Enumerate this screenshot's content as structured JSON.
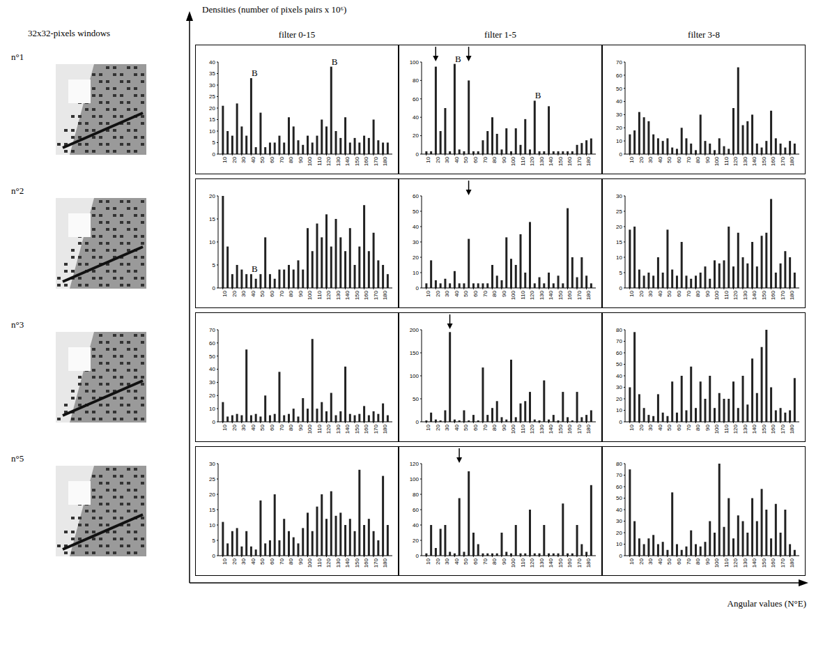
{
  "figure": {
    "y_label": "Densities (number of pixels pairs x 10⁶)",
    "x_label": "Angular values (N°E)",
    "image_header": "32x32-pixels windows",
    "rows": [
      "n°1",
      "n°2",
      "n°3",
      "n°5"
    ]
  },
  "chart_data": [
    {
      "type": "bar",
      "title": "filter 0-15",
      "color": "#222222",
      "xlim": [
        5,
        190
      ],
      "xticks": [
        10,
        20,
        30,
        40,
        50,
        60,
        70,
        80,
        90,
        100,
        110,
        120,
        130,
        140,
        150,
        160,
        170,
        180
      ],
      "ylim": [
        0,
        40
      ],
      "yticks": [
        0,
        5,
        10,
        15,
        20,
        25,
        30,
        35,
        40
      ],
      "x": [
        10,
        15,
        20,
        25,
        30,
        35,
        40,
        45,
        50,
        55,
        60,
        65,
        70,
        75,
        80,
        85,
        90,
        95,
        100,
        105,
        110,
        115,
        120,
        125,
        130,
        135,
        140,
        145,
        150,
        155,
        160,
        165,
        170,
        175,
        180,
        185
      ],
      "values": [
        21,
        10,
        8,
        22,
        12,
        8,
        33,
        3,
        18,
        3,
        5,
        5,
        8,
        5,
        16,
        12,
        6,
        4,
        8,
        5,
        8,
        15,
        12,
        38,
        10,
        7,
        16,
        5,
        7,
        5,
        8,
        7,
        15,
        6,
        5,
        5
      ],
      "annotations": [
        {
          "x": 40,
          "y": 33,
          "text": "B"
        },
        {
          "x": 125,
          "y": 38,
          "text": "B"
        }
      ],
      "arrows": []
    },
    {
      "type": "bar",
      "title": "filter 1-5",
      "color": "#222222",
      "xlim": [
        5,
        190
      ],
      "xticks": [
        10,
        20,
        30,
        40,
        50,
        60,
        70,
        80,
        90,
        100,
        110,
        120,
        130,
        140,
        150,
        160,
        170,
        180
      ],
      "ylim": [
        0,
        100
      ],
      "yticks": [
        0,
        20,
        40,
        60,
        80,
        100
      ],
      "x": [
        10,
        15,
        20,
        25,
        30,
        35,
        40,
        45,
        50,
        55,
        60,
        65,
        70,
        75,
        80,
        85,
        90,
        95,
        100,
        105,
        110,
        115,
        120,
        125,
        130,
        135,
        140,
        145,
        150,
        155,
        160,
        165,
        170,
        175,
        180,
        185
      ],
      "values": [
        3,
        3,
        95,
        25,
        50,
        3,
        98,
        5,
        3,
        80,
        3,
        3,
        15,
        25,
        40,
        22,
        5,
        28,
        3,
        28,
        10,
        38,
        5,
        58,
        3,
        3,
        52,
        3,
        3,
        3,
        3,
        3,
        10,
        12,
        15,
        17
      ],
      "annotations": [
        {
          "x": 40,
          "y": 98,
          "text": "B"
        },
        {
          "x": 125,
          "y": 58,
          "text": "B"
        }
      ],
      "arrows": [
        20,
        55
      ]
    },
    {
      "type": "bar",
      "title": "filter 3-8",
      "color": "#222222",
      "xlim": [
        5,
        190
      ],
      "xticks": [
        10,
        20,
        30,
        40,
        50,
        60,
        70,
        80,
        90,
        100,
        110,
        120,
        130,
        140,
        150,
        160,
        170,
        180
      ],
      "ylim": [
        0,
        70
      ],
      "yticks": [
        0,
        10,
        20,
        30,
        40,
        50,
        60,
        70
      ],
      "x": [
        10,
        15,
        20,
        25,
        30,
        35,
        40,
        45,
        50,
        55,
        60,
        65,
        70,
        75,
        80,
        85,
        90,
        95,
        100,
        105,
        110,
        115,
        120,
        125,
        130,
        135,
        140,
        145,
        150,
        155,
        160,
        165,
        170,
        175,
        180,
        185
      ],
      "values": [
        15,
        18,
        32,
        28,
        25,
        15,
        12,
        10,
        12,
        5,
        4,
        20,
        12,
        8,
        3,
        30,
        10,
        8,
        3,
        12,
        6,
        4,
        35,
        66,
        22,
        25,
        30,
        8,
        5,
        10,
        33,
        12,
        8,
        5,
        10,
        8
      ],
      "annotations": [],
      "arrows": []
    },
    {
      "type": "bar",
      "color": "#222222",
      "xlim": [
        5,
        190
      ],
      "xticks": [
        10,
        20,
        30,
        40,
        50,
        60,
        70,
        80,
        90,
        100,
        110,
        120,
        130,
        140,
        150,
        160,
        170,
        180
      ],
      "ylim": [
        0,
        20
      ],
      "yticks": [
        0,
        5,
        10,
        15,
        20
      ],
      "x": [
        10,
        15,
        20,
        25,
        30,
        35,
        40,
        45,
        50,
        55,
        60,
        65,
        70,
        75,
        80,
        85,
        90,
        95,
        100,
        105,
        110,
        115,
        120,
        125,
        130,
        135,
        140,
        145,
        150,
        155,
        160,
        165,
        170,
        175,
        180,
        185
      ],
      "values": [
        20,
        9,
        3,
        5,
        4,
        3,
        3,
        2,
        3,
        11,
        3,
        2,
        4,
        4,
        5,
        4,
        6,
        4,
        13,
        8,
        14,
        11,
        16,
        9,
        15,
        11,
        8,
        13,
        5,
        9,
        18,
        8,
        12,
        6,
        5,
        3
      ],
      "annotations": [
        {
          "x": 40,
          "y": 3,
          "text": "B"
        }
      ],
      "arrows": []
    },
    {
      "type": "bar",
      "color": "#222222",
      "xlim": [
        5,
        190
      ],
      "xticks": [
        10,
        20,
        30,
        40,
        50,
        60,
        70,
        80,
        90,
        100,
        110,
        120,
        130,
        140,
        150,
        160,
        170,
        180
      ],
      "ylim": [
        0,
        60
      ],
      "yticks": [
        0,
        10,
        20,
        30,
        40,
        50,
        60
      ],
      "x": [
        10,
        15,
        20,
        25,
        30,
        35,
        40,
        45,
        50,
        55,
        60,
        65,
        70,
        75,
        80,
        85,
        90,
        95,
        100,
        105,
        110,
        115,
        120,
        125,
        130,
        135,
        140,
        145,
        150,
        155,
        160,
        165,
        170,
        175,
        180,
        185
      ],
      "values": [
        3,
        18,
        5,
        3,
        6,
        3,
        11,
        3,
        3,
        32,
        3,
        3,
        3,
        3,
        15,
        8,
        5,
        33,
        19,
        15,
        35,
        10,
        43,
        3,
        7,
        3,
        10,
        3,
        8,
        3,
        52,
        20,
        7,
        20,
        8,
        3
      ],
      "annotations": [],
      "arrows": [
        55
      ]
    },
    {
      "type": "bar",
      "color": "#222222",
      "xlim": [
        5,
        190
      ],
      "xticks": [
        10,
        20,
        30,
        40,
        50,
        60,
        70,
        80,
        90,
        100,
        110,
        120,
        130,
        140,
        150,
        160,
        170,
        180
      ],
      "ylim": [
        0,
        30
      ],
      "yticks": [
        0,
        5,
        10,
        15,
        20,
        25,
        30
      ],
      "x": [
        10,
        15,
        20,
        25,
        30,
        35,
        40,
        45,
        50,
        55,
        60,
        65,
        70,
        75,
        80,
        85,
        90,
        95,
        100,
        105,
        110,
        115,
        120,
        125,
        130,
        135,
        140,
        145,
        150,
        155,
        160,
        165,
        170,
        175,
        180,
        185
      ],
      "values": [
        19,
        20,
        6,
        4,
        5,
        4,
        10,
        5,
        19,
        6,
        4,
        15,
        4,
        3,
        4,
        5,
        7,
        3,
        9,
        8,
        9,
        20,
        7,
        18,
        10,
        8,
        15,
        7,
        17,
        18,
        29,
        5,
        8,
        12,
        10,
        5
      ],
      "annotations": [],
      "arrows": []
    },
    {
      "type": "bar",
      "color": "#222222",
      "xlim": [
        5,
        190
      ],
      "xticks": [
        10,
        20,
        30,
        40,
        50,
        60,
        70,
        80,
        90,
        100,
        110,
        120,
        130,
        140,
        150,
        160,
        170,
        180
      ],
      "ylim": [
        0,
        70
      ],
      "yticks": [
        0,
        10,
        20,
        30,
        40,
        50,
        60,
        70
      ],
      "x": [
        10,
        15,
        20,
        25,
        30,
        35,
        40,
        45,
        50,
        55,
        60,
        65,
        70,
        75,
        80,
        85,
        90,
        95,
        100,
        105,
        110,
        115,
        120,
        125,
        130,
        135,
        140,
        145,
        150,
        155,
        160,
        165,
        170,
        175,
        180,
        185
      ],
      "values": [
        15,
        4,
        5,
        6,
        5,
        55,
        5,
        6,
        4,
        20,
        5,
        6,
        38,
        5,
        6,
        10,
        4,
        18,
        10,
        63,
        10,
        15,
        8,
        22,
        5,
        8,
        42,
        6,
        5,
        6,
        12,
        5,
        8,
        6,
        14,
        5
      ],
      "annotations": [],
      "arrows": []
    },
    {
      "type": "bar",
      "color": "#222222",
      "xlim": [
        5,
        190
      ],
      "xticks": [
        10,
        20,
        30,
        40,
        50,
        60,
        70,
        80,
        90,
        100,
        110,
        120,
        130,
        140,
        150,
        160,
        170,
        180
      ],
      "ylim": [
        0,
        200
      ],
      "yticks": [
        0,
        50,
        100,
        150,
        200
      ],
      "x": [
        10,
        15,
        20,
        25,
        30,
        35,
        40,
        45,
        50,
        55,
        60,
        65,
        70,
        75,
        80,
        85,
        90,
        95,
        100,
        105,
        110,
        115,
        120,
        125,
        130,
        135,
        140,
        145,
        150,
        155,
        160,
        165,
        170,
        175,
        180,
        185
      ],
      "values": [
        3,
        20,
        5,
        3,
        25,
        195,
        5,
        3,
        25,
        3,
        15,
        3,
        118,
        15,
        30,
        45,
        10,
        5,
        135,
        10,
        40,
        45,
        65,
        5,
        3,
        90,
        5,
        15,
        3,
        65,
        10,
        3,
        65,
        10,
        15,
        25
      ],
      "annotations": [],
      "arrows": [
        35
      ]
    },
    {
      "type": "bar",
      "color": "#222222",
      "xlim": [
        5,
        190
      ],
      "xticks": [
        10,
        20,
        30,
        40,
        50,
        60,
        70,
        80,
        90,
        100,
        110,
        120,
        130,
        140,
        150,
        160,
        170,
        180
      ],
      "ylim": [
        0,
        80
      ],
      "yticks": [
        0,
        10,
        20,
        30,
        40,
        50,
        60,
        70,
        80
      ],
      "x": [
        10,
        15,
        20,
        25,
        30,
        35,
        40,
        45,
        50,
        55,
        60,
        65,
        70,
        75,
        80,
        85,
        90,
        95,
        100,
        105,
        110,
        115,
        120,
        125,
        130,
        135,
        140,
        145,
        150,
        155,
        160,
        165,
        170,
        175,
        180,
        185
      ],
      "values": [
        30,
        78,
        24,
        12,
        6,
        5,
        24,
        8,
        5,
        35,
        8,
        40,
        10,
        48,
        12,
        35,
        20,
        40,
        12,
        25,
        20,
        20,
        35,
        12,
        40,
        15,
        55,
        25,
        65,
        80,
        30,
        10,
        12,
        8,
        10,
        38
      ],
      "annotations": [],
      "arrows": []
    },
    {
      "type": "bar",
      "color": "#222222",
      "xlim": [
        5,
        190
      ],
      "xticks": [
        10,
        20,
        30,
        40,
        50,
        60,
        70,
        80,
        90,
        100,
        110,
        120,
        130,
        140,
        150,
        160,
        170,
        180
      ],
      "ylim": [
        0,
        30
      ],
      "yticks": [
        0,
        5,
        10,
        15,
        20,
        25,
        30
      ],
      "x": [
        10,
        15,
        20,
        25,
        30,
        35,
        40,
        45,
        50,
        55,
        60,
        65,
        70,
        75,
        80,
        85,
        90,
        95,
        100,
        105,
        110,
        115,
        120,
        125,
        130,
        135,
        140,
        145,
        150,
        155,
        160,
        165,
        170,
        175,
        180,
        185
      ],
      "values": [
        11,
        4,
        8,
        9,
        3,
        8,
        3,
        2,
        18,
        4,
        5,
        20,
        5,
        12,
        8,
        6,
        4,
        9,
        14,
        8,
        16,
        20,
        12,
        21,
        13,
        14,
        10,
        12,
        8,
        28,
        10,
        12,
        8,
        5,
        26,
        10
      ],
      "annotations": [],
      "arrows": []
    },
    {
      "type": "bar",
      "color": "#222222",
      "xlim": [
        5,
        190
      ],
      "xticks": [
        10,
        20,
        30,
        40,
        50,
        60,
        70,
        80,
        90,
        100,
        110,
        120,
        130,
        140,
        150,
        160,
        170,
        180
      ],
      "ylim": [
        0,
        120
      ],
      "yticks": [
        0,
        20,
        40,
        60,
        80,
        100,
        120
      ],
      "x": [
        10,
        15,
        20,
        25,
        30,
        35,
        40,
        45,
        50,
        55,
        60,
        65,
        70,
        75,
        80,
        85,
        90,
        95,
        100,
        105,
        110,
        115,
        120,
        125,
        130,
        135,
        140,
        145,
        150,
        155,
        160,
        165,
        170,
        175,
        180,
        185
      ],
      "values": [
        3,
        40,
        10,
        35,
        40,
        5,
        3,
        75,
        5,
        110,
        30,
        15,
        3,
        3,
        3,
        3,
        30,
        5,
        3,
        40,
        3,
        3,
        60,
        3,
        3,
        40,
        3,
        3,
        3,
        68,
        3,
        3,
        40,
        15,
        5,
        92
      ],
      "annotations": [],
      "arrows": [
        45
      ]
    },
    {
      "type": "bar",
      "color": "#222222",
      "xlim": [
        5,
        190
      ],
      "xticks": [
        10,
        20,
        30,
        40,
        50,
        60,
        70,
        80,
        90,
        100,
        110,
        120,
        130,
        140,
        150,
        160,
        170,
        180
      ],
      "ylim": [
        0,
        80
      ],
      "yticks": [
        0,
        10,
        20,
        30,
        40,
        50,
        60,
        70,
        80
      ],
      "x": [
        10,
        15,
        20,
        25,
        30,
        35,
        40,
        45,
        50,
        55,
        60,
        65,
        70,
        75,
        80,
        85,
        90,
        95,
        100,
        105,
        110,
        115,
        120,
        125,
        130,
        135,
        140,
        145,
        150,
        155,
        160,
        165,
        170,
        175,
        180,
        185
      ],
      "values": [
        75,
        30,
        15,
        10,
        15,
        18,
        10,
        12,
        5,
        55,
        10,
        5,
        8,
        22,
        10,
        8,
        12,
        30,
        20,
        80,
        25,
        50,
        15,
        35,
        30,
        20,
        50,
        30,
        58,
        40,
        15,
        45,
        20,
        40,
        10,
        5
      ],
      "annotations": [],
      "arrows": []
    }
  ]
}
